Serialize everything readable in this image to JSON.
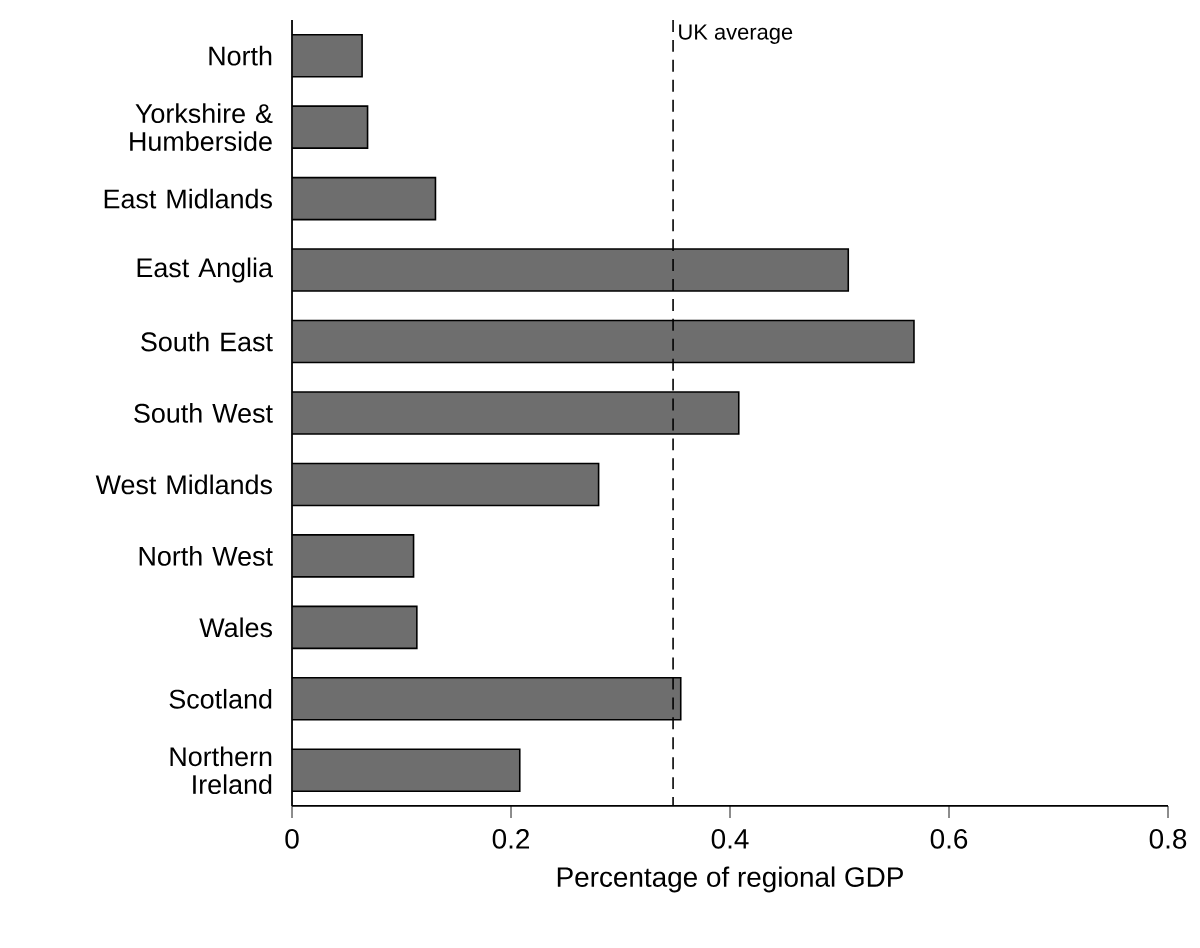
{
  "chart_data": {
    "type": "bar",
    "orientation": "horizontal",
    "categories": [
      "North",
      "Yorkshire & Humberside",
      "East Midlands",
      "East Anglia",
      "South East",
      "South West",
      "West Midlands",
      "North West",
      "Wales",
      "Scotland",
      "Northern Ireland"
    ],
    "values": [
      0.064,
      0.069,
      0.131,
      0.508,
      0.568,
      0.408,
      0.28,
      0.111,
      0.114,
      0.355,
      0.208
    ],
    "color": "#6e6e6e",
    "xlabel": "Percentage of regional GDP",
    "xlim": [
      0,
      0.8
    ],
    "xticks": [
      0,
      0.2,
      0.4,
      0.6,
      0.8
    ],
    "ref_lines": [
      {
        "axis": "x",
        "value": 0.348,
        "label": "UK average",
        "line_style": "dashed"
      }
    ],
    "grid": false
  }
}
